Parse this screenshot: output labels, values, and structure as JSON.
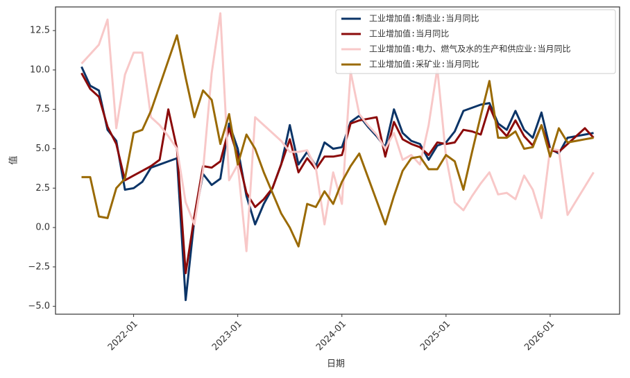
{
  "chart_data": {
    "type": "line",
    "x": [
      "2021-07",
      "2021-08",
      "2021-09",
      "2021-10",
      "2021-11",
      "2021-12",
      "2022-01",
      "2022-02",
      "2022-03",
      "2022-04",
      "2022-05",
      "2022-06",
      "2022-07",
      "2022-08",
      "2022-09",
      "2022-10",
      "2022-11",
      "2022-12",
      "2023-01",
      "2023-02",
      "2023-03",
      "2023-04",
      "2023-05",
      "2023-06",
      "2023-07",
      "2023-08",
      "2023-09",
      "2023-10",
      "2023-11",
      "2023-12",
      "2024-01",
      "2024-02",
      "2024-03",
      "2024-04",
      "2024-05",
      "2024-06",
      "2024-07",
      "2024-08",
      "2024-09",
      "2024-10",
      "2024-11",
      "2024-12",
      "2025-01",
      "2025-02",
      "2025-03",
      "2025-04",
      "2025-05",
      "2025-06",
      "2025-07",
      "2025-08",
      "2025-09",
      "2025-10",
      "2025-11",
      "2025-12",
      "2026-01",
      "2026-02",
      "2026-03",
      "2026-04",
      "2026-05",
      "2026-06"
    ],
    "series": [
      {
        "name": "工业增加值:制造业:当月同比",
        "color": "#0b3467",
        "values": [
          10.2,
          9.0,
          8.7,
          6.2,
          5.5,
          2.4,
          2.5,
          2.9,
          3.8,
          4.0,
          4.2,
          4.4,
          -4.6,
          0.5,
          3.4,
          2.7,
          3.1,
          6.6,
          5.0,
          2.0,
          0.2,
          1.5,
          2.5,
          4.0,
          6.5,
          4.0,
          4.8,
          3.9,
          5.4,
          5.0,
          5.1,
          6.7,
          7.1,
          6.4,
          5.8,
          5.1,
          7.5,
          6.0,
          5.5,
          5.3,
          4.3,
          5.2,
          5.4,
          6.1,
          7.4,
          7.6,
          7.8,
          7.9,
          6.6,
          6.2,
          7.4,
          6.2,
          5.7,
          7.3,
          5.0,
          4.7,
          5.7,
          5.8,
          5.9,
          6.0
        ]
      },
      {
        "name": "工业增加值:当月同比",
        "color": "#8b0a0a",
        "values": [
          9.8,
          8.8,
          8.3,
          6.4,
          5.3,
          3.0,
          3.3,
          3.6,
          3.9,
          4.3,
          7.5,
          5.0,
          -2.9,
          0.7,
          3.9,
          3.8,
          4.2,
          6.3,
          4.5,
          2.2,
          1.3,
          1.8,
          2.5,
          4.0,
          5.6,
          3.5,
          4.4,
          3.7,
          4.5,
          4.5,
          4.6,
          6.6,
          6.8,
          6.9,
          7.0,
          4.5,
          6.7,
          5.6,
          5.3,
          5.1,
          4.6,
          5.4,
          5.3,
          5.4,
          6.2,
          6.1,
          5.9,
          7.7,
          6.4,
          5.8,
          6.8,
          5.8,
          5.2,
          6.5,
          4.9,
          4.8,
          5.3,
          5.8,
          6.3,
          5.7
        ]
      },
      {
        "name": "工业增加值:电力、燃气及水的生产和供应业:当月同比",
        "color": "#f8c8c8",
        "values": [
          10.4,
          11.0,
          11.6,
          13.2,
          6.3,
          9.7,
          11.1,
          11.1,
          7.0,
          6.5,
          5.8,
          5.0,
          1.6,
          0.2,
          3.6,
          9.8,
          13.6,
          3.0,
          4.0,
          -1.5,
          7.0,
          6.5,
          6.0,
          5.5,
          4.8,
          4.8,
          4.9,
          3.8,
          0.2,
          3.5,
          1.5,
          9.9,
          7.2,
          6.5,
          5.9,
          5.0,
          6.0,
          4.3,
          4.6,
          4.0,
          6.5,
          10.1,
          4.5,
          1.6,
          1.1,
          2.0,
          2.8,
          3.5,
          2.1,
          2.2,
          1.8,
          3.3,
          2.4,
          0.6,
          5.0,
          4.9,
          0.8,
          1.7,
          2.6,
          3.5
        ]
      },
      {
        "name": "工业增加值:采矿业:当月同比",
        "color": "#9a6a04",
        "values": [
          3.2,
          3.2,
          0.7,
          0.6,
          2.5,
          3.1,
          6.0,
          6.2,
          7.4,
          9.0,
          10.6,
          12.2,
          9.5,
          7.0,
          8.7,
          8.1,
          5.3,
          7.2,
          4.0,
          5.9,
          5.0,
          3.5,
          2.2,
          0.9,
          0.0,
          -1.2,
          1.5,
          1.3,
          2.3,
          1.5,
          2.9,
          3.9,
          4.7,
          3.2,
          1.7,
          0.2,
          2.0,
          3.6,
          4.4,
          4.5,
          3.7,
          3.7,
          4.6,
          4.2,
          2.4,
          4.8,
          7.1,
          9.3,
          5.7,
          5.7,
          6.1,
          5.0,
          5.1,
          6.5,
          4.5,
          6.3,
          5.4,
          5.5,
          5.6,
          5.7
        ]
      }
    ],
    "xlim": [
      "2021-04",
      "2026-09"
    ],
    "xticks": [
      "2022-01",
      "2023-01",
      "2024-01",
      "2025-01",
      "2026-01"
    ],
    "ylim": [
      -5.5,
      14.0
    ],
    "yticks": [
      {
        "value": -5,
        "label": "−5.0"
      },
      {
        "value": -2.5,
        "label": "−2.5"
      },
      {
        "value": 0,
        "label": "0.0"
      },
      2.5,
      {
        "value": 5,
        "label": "5.0"
      },
      7.5,
      {
        "value": 10,
        "label": "10.0"
      },
      12.5
    ],
    "xlabel": "日期",
    "ylabel": "值",
    "legend": "upper right",
    "grid": false
  }
}
